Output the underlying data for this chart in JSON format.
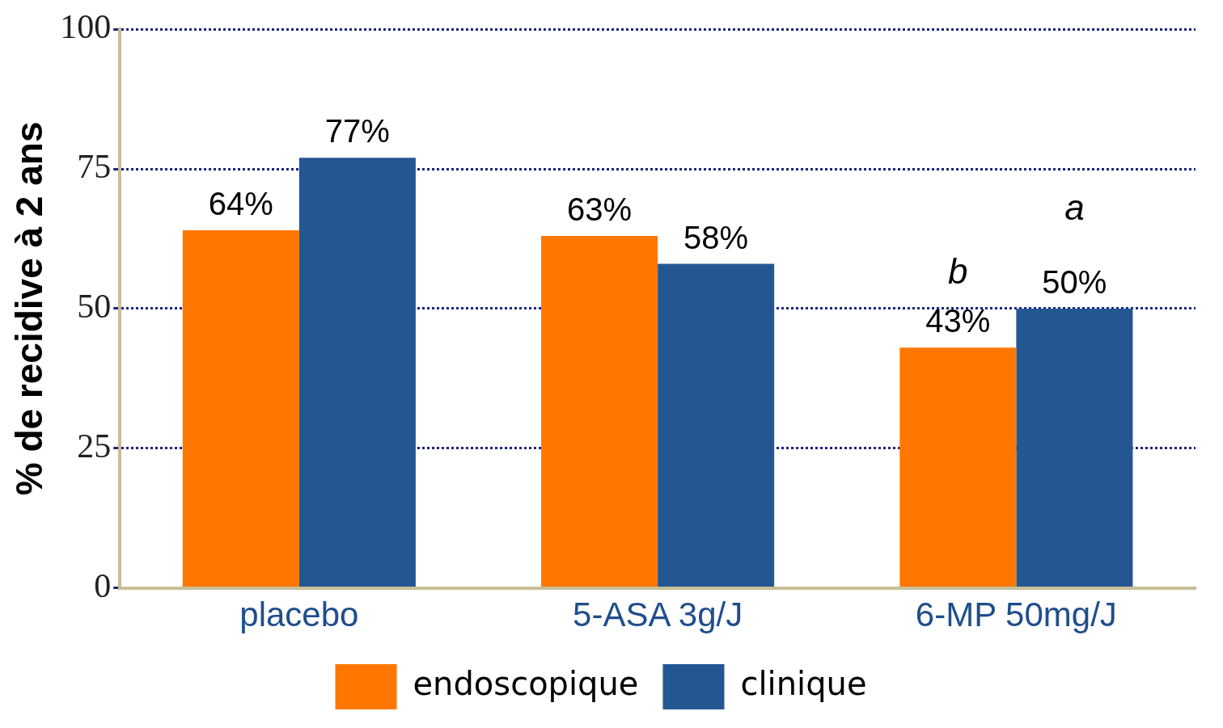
{
  "chart_data": {
    "type": "bar",
    "ylabel": "% de recidive à 2 ans",
    "categories": [
      "placebo",
      "5-ASA 3g/J",
      "6-MP 50mg/J"
    ],
    "series": [
      {
        "name": "endoscopique",
        "color": "#ff7700",
        "values": [
          64,
          63,
          43
        ],
        "value_labels": [
          "64%",
          "63%",
          "43%"
        ]
      },
      {
        "name": "clinique",
        "color": "#245692",
        "values": [
          77,
          58,
          50
        ],
        "value_labels": [
          "77%",
          "58%",
          "50%"
        ]
      }
    ],
    "ylim": [
      0,
      100
    ],
    "yticks": [
      0,
      25,
      50,
      75,
      100
    ],
    "grid": "y",
    "legend": "bottom",
    "annotations": [
      "b",
      "a"
    ]
  }
}
